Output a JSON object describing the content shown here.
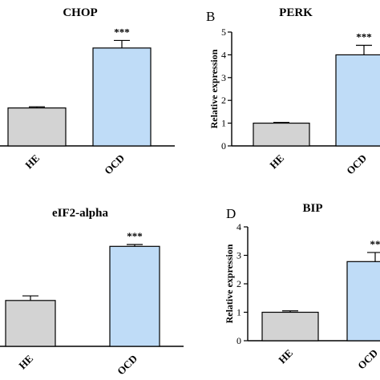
{
  "chart_data": [
    {
      "type": "bar",
      "panel_letter": "",
      "title": "CHOP",
      "ylabel": "",
      "categories": [
        "HE",
        "OCD"
      ],
      "values": [
        1.0,
        2.58
      ],
      "errors": [
        0.03,
        0.2
      ],
      "ylim": [
        0,
        3
      ],
      "yticks": [],
      "significance": [
        "",
        "***"
      ],
      "colors": [
        "#d3d3d3",
        "#bfdcf7"
      ]
    },
    {
      "type": "bar",
      "panel_letter": "B",
      "title": "PERK",
      "ylabel": "Relative expression",
      "categories": [
        "HE",
        "OCD"
      ],
      "values": [
        1.0,
        4.0
      ],
      "errors": [
        0.03,
        0.42
      ],
      "ylim": [
        0,
        5
      ],
      "yticks": [
        "0",
        "1",
        "2",
        "3",
        "4",
        "5"
      ],
      "significance": [
        "",
        "***"
      ],
      "colors": [
        "#d3d3d3",
        "#bfdcf7"
      ]
    },
    {
      "type": "bar",
      "panel_letter": "",
      "title": "eIF2-alpha",
      "ylabel": "",
      "categories": [
        "HE",
        "OCD"
      ],
      "values": [
        1.0,
        2.18
      ],
      "errors": [
        0.1,
        0.04
      ],
      "ylim": [
        0,
        2.5
      ],
      "yticks": [],
      "significance": [
        "",
        "***"
      ],
      "colors": [
        "#d3d3d3",
        "#bfdcf7"
      ]
    },
    {
      "type": "bar",
      "panel_letter": "D",
      "title": "BIP",
      "ylabel": "Relative expression",
      "categories": [
        "HE",
        "OCD"
      ],
      "values": [
        1.0,
        2.78
      ],
      "errors": [
        0.05,
        0.32
      ],
      "ylim": [
        0,
        4
      ],
      "yticks": [
        "0",
        "1",
        "2",
        "3",
        "4"
      ],
      "significance": [
        "",
        "**"
      ],
      "colors": [
        "#d3d3d3",
        "#bfdcf7"
      ]
    }
  ]
}
